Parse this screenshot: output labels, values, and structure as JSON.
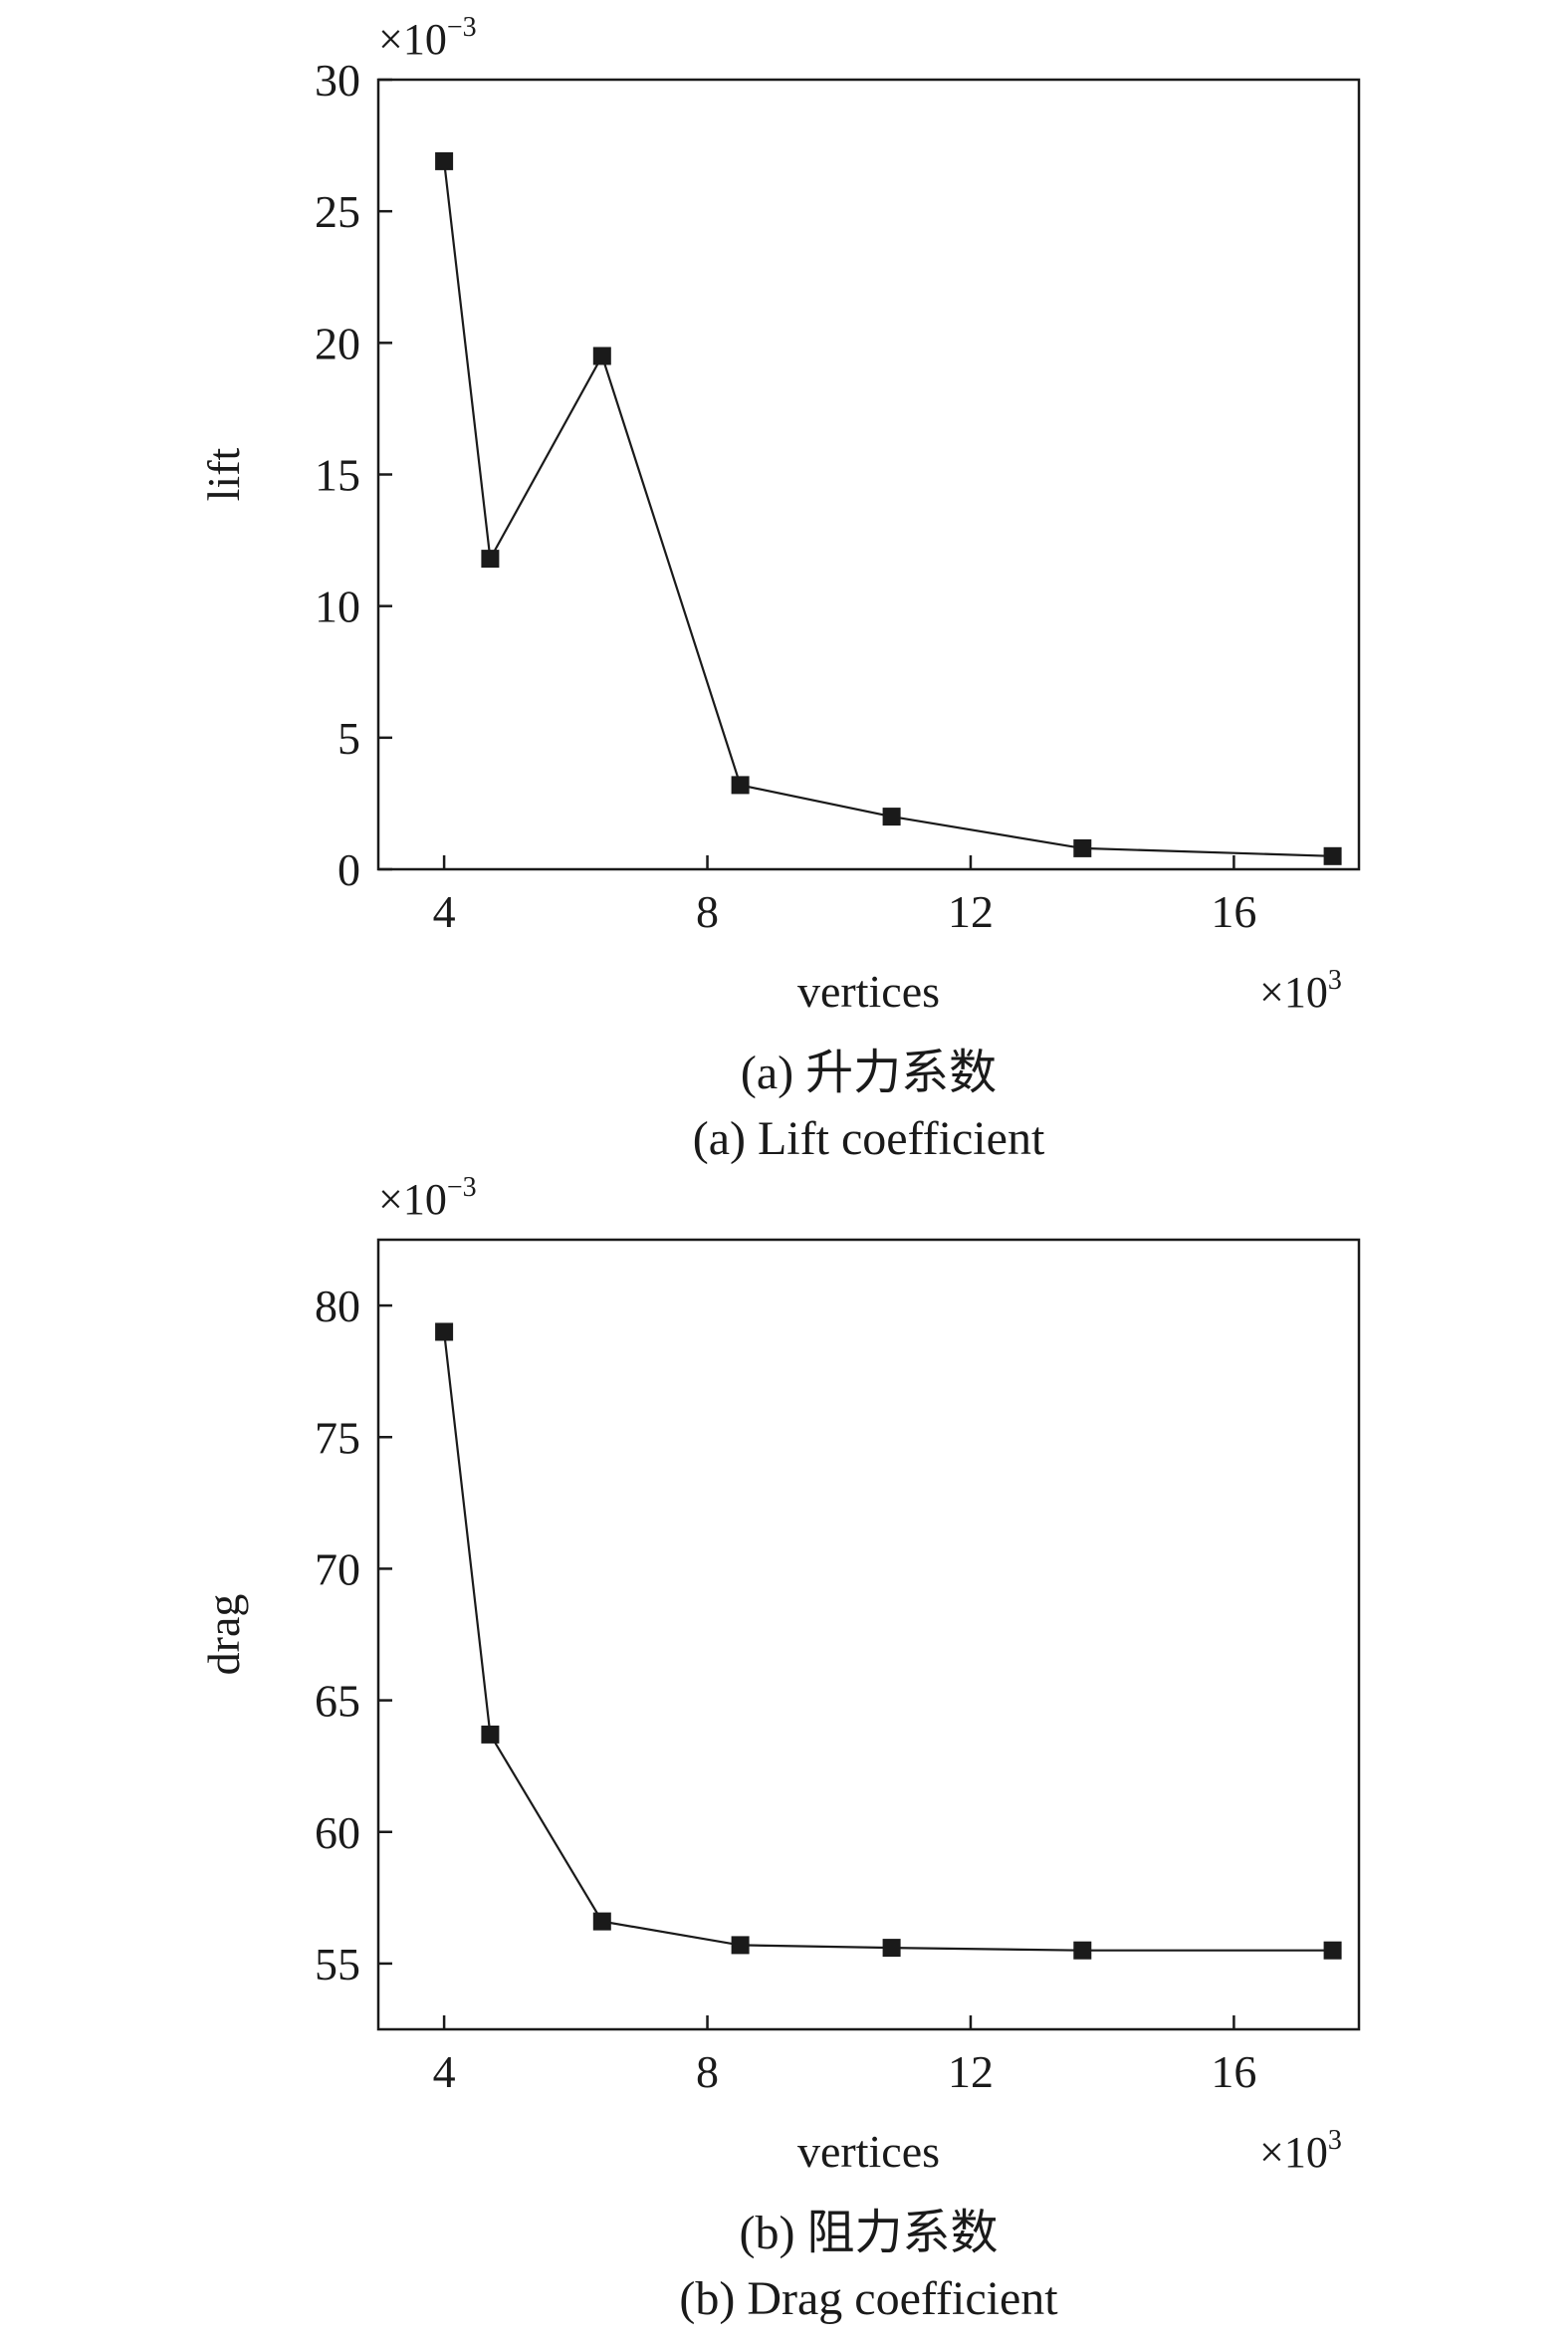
{
  "colors": {
    "line": "#1a1a1a",
    "marker": "#1a1a1a",
    "frame": "#1a1a1a",
    "background": "#ffffff"
  },
  "chart_data": [
    {
      "type": "line",
      "panel": "a",
      "ylabel": "lift",
      "xlabel": "vertices",
      "x_multiplier": "×10",
      "x_multiplier_exp": "3",
      "y_multiplier": "×10",
      "y_multiplier_exp": "−3",
      "xlim": [
        3.0,
        17.9
      ],
      "ylim": [
        0,
        30
      ],
      "xticks": [
        4,
        8,
        12,
        16
      ],
      "yticks": [
        0,
        5,
        10,
        15,
        20,
        25,
        30
      ],
      "marker": "square",
      "grid": false,
      "x": [
        4.0,
        4.7,
        6.4,
        8.5,
        10.8,
        13.7,
        17.5
      ],
      "y": [
        26.9,
        11.8,
        19.5,
        3.2,
        2.0,
        0.8,
        0.5
      ],
      "caption_cn": "(a) 升力系数",
      "caption_en": "(a) Lift coefficient"
    },
    {
      "type": "line",
      "panel": "b",
      "ylabel": "drag",
      "xlabel": "vertices",
      "x_multiplier": "×10",
      "x_multiplier_exp": "3",
      "y_multiplier": "×10",
      "y_multiplier_exp": "−3",
      "xlim": [
        3.0,
        17.9
      ],
      "ylim": [
        52.5,
        82.5
      ],
      "xticks": [
        4,
        8,
        12,
        16
      ],
      "yticks": [
        55,
        60,
        65,
        70,
        75,
        80
      ],
      "marker": "square",
      "grid": false,
      "x": [
        4.0,
        4.7,
        6.4,
        8.5,
        10.8,
        13.7,
        17.5
      ],
      "y": [
        79.0,
        63.7,
        56.6,
        55.7,
        55.6,
        55.5,
        55.5
      ],
      "caption_cn": "(b) 阻力系数",
      "caption_en": "(b) Drag coefficient"
    }
  ]
}
